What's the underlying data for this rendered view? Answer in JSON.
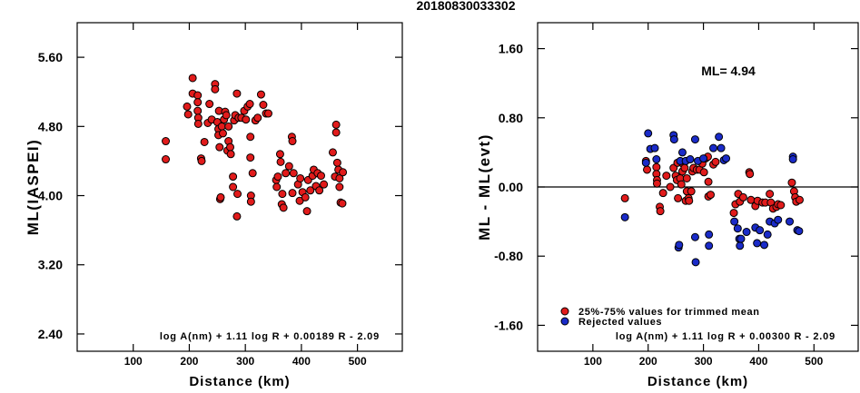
{
  "figure": {
    "title": "20180830033302"
  },
  "chart_data": [
    {
      "type": "scatter",
      "ylabel": "ML(IASPEI)",
      "xlabel": "Distance (km)",
      "xlim": [
        0,
        580
      ],
      "ylim": [
        2.2,
        6.0
      ],
      "xticks": [
        100,
        200,
        300,
        400,
        500
      ],
      "yticks": [
        2.4,
        3.2,
        4.0,
        4.8,
        5.6
      ],
      "ytick_labels": [
        "2.40",
        "3.20",
        "4.00",
        "4.80",
        "5.60"
      ],
      "formula": "log A(nm) + 1.11 log R + 0.00189 R - 2.09",
      "series": [
        {
          "color": "#e11b1b",
          "points": [
            [
              158,
              4.63
            ],
            [
              158,
              4.42
            ],
            [
              196,
              5.03
            ],
            [
              198,
              4.94
            ],
            [
              206,
              5.36
            ],
            [
              206,
              5.18
            ],
            [
              215,
              5.16
            ],
            [
              215,
              5.08
            ],
            [
              215,
              4.98
            ],
            [
              216,
              4.9
            ],
            [
              216,
              4.83
            ],
            [
              221,
              4.43
            ],
            [
              222,
              4.4
            ],
            [
              227,
              4.62
            ],
            [
              233,
              4.84
            ],
            [
              236,
              5.06
            ],
            [
              240,
              4.88
            ],
            [
              246,
              5.29
            ],
            [
              246,
              5.23
            ],
            [
              250,
              4.85
            ],
            [
              252,
              4.77
            ],
            [
              252,
              4.7
            ],
            [
              253,
              4.98
            ],
            [
              254,
              4.56
            ],
            [
              255,
              3.96
            ],
            [
              256,
              3.98
            ],
            [
              258,
              4.8
            ],
            [
              260,
              4.72
            ],
            [
              262,
              4.88
            ],
            [
              264,
              4.97
            ],
            [
              266,
              4.93
            ],
            [
              268,
              4.52
            ],
            [
              270,
              4.8
            ],
            [
              270,
              4.63
            ],
            [
              273,
              4.56
            ],
            [
              274,
              4.48
            ],
            [
              278,
              4.22
            ],
            [
              278,
              4.1
            ],
            [
              280,
              4.87
            ],
            [
              282,
              4.93
            ],
            [
              285,
              3.76
            ],
            [
              285,
              5.18
            ],
            [
              286,
              4.02
            ],
            [
              288,
              4.9
            ],
            [
              293,
              4.9
            ],
            [
              298,
              4.98
            ],
            [
              301,
              4.88
            ],
            [
              304,
              5.03
            ],
            [
              308,
              5.06
            ],
            [
              309,
              4.68
            ],
            [
              309,
              4.44
            ],
            [
              310,
              4.0
            ],
            [
              310,
              3.93
            ],
            [
              313,
              4.26
            ],
            [
              318,
              4.87
            ],
            [
              322,
              4.9
            ],
            [
              328,
              5.17
            ],
            [
              332,
              5.05
            ],
            [
              337,
              4.95
            ],
            [
              341,
              4.95
            ],
            [
              355,
              4.18
            ],
            [
              356,
              4.1
            ],
            [
              358,
              4.22
            ],
            [
              362,
              4.48
            ],
            [
              363,
              4.39
            ],
            [
              365,
              3.9
            ],
            [
              366,
              4.02
            ],
            [
              368,
              3.86
            ],
            [
              372,
              4.26
            ],
            [
              378,
              4.34
            ],
            [
              383,
              4.68
            ],
            [
              384,
              4.63
            ],
            [
              384,
              4.03
            ],
            [
              386,
              4.26
            ],
            [
              394,
              4.13
            ],
            [
              397,
              3.94
            ],
            [
              398,
              4.2
            ],
            [
              402,
              4.04
            ],
            [
              407,
              3.98
            ],
            [
              410,
              3.82
            ],
            [
              412,
              4.18
            ],
            [
              416,
              4.06
            ],
            [
              420,
              4.23
            ],
            [
              422,
              4.3
            ],
            [
              426,
              4.11
            ],
            [
              429,
              4.26
            ],
            [
              432,
              4.06
            ],
            [
              435,
              4.23
            ],
            [
              440,
              4.13
            ],
            [
              456,
              4.5
            ],
            [
              460,
              4.22
            ],
            [
              462,
              4.82
            ],
            [
              462,
              4.73
            ],
            [
              464,
              4.38
            ],
            [
              466,
              4.3
            ],
            [
              468,
              4.2
            ],
            [
              468,
              4.1
            ],
            [
              470,
              3.92
            ],
            [
              473,
              3.91
            ],
            [
              474,
              4.27
            ]
          ]
        }
      ]
    },
    {
      "type": "scatter",
      "ylabel": "ML - ML(evt)",
      "xlabel": "Distance (km)",
      "xlim": [
        0,
        580
      ],
      "ylim": [
        -1.9,
        1.9
      ],
      "xticks": [
        100,
        200,
        300,
        400,
        500
      ],
      "yticks": [
        -1.6,
        -0.8,
        0.0,
        0.8,
        1.6
      ],
      "ytick_labels": [
        "-1.60",
        "-0.80",
        "0.00",
        "0.80",
        "1.60"
      ],
      "zero_line": true,
      "annotation": "ML= 4.94",
      "formula": "log A(nm) + 1.11 log R + 0.00300 R - 2.09",
      "legend": {
        "position": "bottom-left",
        "entries": [
          {
            "label": "25%-75% values for trimmed mean",
            "color": "#e11b1b"
          },
          {
            "label": "Rejected values",
            "color": "#1a2bc8"
          }
        ]
      },
      "series": [
        {
          "name": "25%-75% values for trimmed mean",
          "color": "#e11b1b",
          "points": [
            [
              158,
              -0.13
            ],
            [
              196,
              0.3
            ],
            [
              198,
              0.2
            ],
            [
              215,
              0.23
            ],
            [
              215,
              0.15
            ],
            [
              216,
              0.08
            ],
            [
              216,
              0.04
            ],
            [
              221,
              -0.23
            ],
            [
              222,
              -0.28
            ],
            [
              227,
              -0.07
            ],
            [
              233,
              0.13
            ],
            [
              240,
              0.0
            ],
            [
              246,
              0.22
            ],
            [
              250,
              0.13
            ],
            [
              252,
              0.08
            ],
            [
              253,
              0.28
            ],
            [
              254,
              -0.13
            ],
            [
              258,
              0.1
            ],
            [
              260,
              0.03
            ],
            [
              262,
              0.18
            ],
            [
              264,
              0.26
            ],
            [
              266,
              0.22
            ],
            [
              268,
              -0.16
            ],
            [
              270,
              0.1
            ],
            [
              270,
              -0.05
            ],
            [
              273,
              -0.13
            ],
            [
              274,
              -0.16
            ],
            [
              278,
              -0.05
            ],
            [
              280,
              0.18
            ],
            [
              282,
              0.22
            ],
            [
              288,
              0.2
            ],
            [
              293,
              0.2
            ],
            [
              298,
              0.27
            ],
            [
              301,
              0.17
            ],
            [
              304,
              0.33
            ],
            [
              308,
              0.35
            ],
            [
              309,
              0.06
            ],
            [
              309,
              -0.11
            ],
            [
              313,
              -0.09
            ],
            [
              318,
              0.26
            ],
            [
              322,
              0.29
            ],
            [
              355,
              -0.3
            ],
            [
              358,
              -0.2
            ],
            [
              363,
              -0.08
            ],
            [
              366,
              -0.17
            ],
            [
              372,
              -0.12
            ],
            [
              383,
              0.17
            ],
            [
              384,
              0.15
            ],
            [
              386,
              -0.15
            ],
            [
              394,
              -0.22
            ],
            [
              398,
              -0.16
            ],
            [
              407,
              -0.18
            ],
            [
              412,
              -0.18
            ],
            [
              420,
              -0.08
            ],
            [
              422,
              -0.18
            ],
            [
              426,
              -0.25
            ],
            [
              432,
              -0.23
            ],
            [
              435,
              -0.2
            ],
            [
              440,
              -0.21
            ],
            [
              460,
              0.05
            ],
            [
              464,
              -0.05
            ],
            [
              466,
              -0.12
            ],
            [
              468,
              -0.17
            ],
            [
              474,
              -0.15
            ]
          ]
        },
        {
          "name": "Rejected values",
          "color": "#1a2bc8",
          "points": [
            [
              158,
              -0.35
            ],
            [
              196,
              0.28
            ],
            [
              200,
              0.62
            ],
            [
              204,
              0.44
            ],
            [
              212,
              0.45
            ],
            [
              215,
              0.32
            ],
            [
              246,
              0.6
            ],
            [
              247,
              0.55
            ],
            [
              255,
              -0.7
            ],
            [
              256,
              -0.67
            ],
            [
              258,
              0.3
            ],
            [
              262,
              0.4
            ],
            [
              268,
              0.3
            ],
            [
              276,
              0.32
            ],
            [
              285,
              0.55
            ],
            [
              285,
              -0.58
            ],
            [
              286,
              -0.87
            ],
            [
              290,
              0.3
            ],
            [
              300,
              0.33
            ],
            [
              310,
              -0.55
            ],
            [
              310,
              -0.68
            ],
            [
              318,
              0.45
            ],
            [
              328,
              0.58
            ],
            [
              332,
              0.45
            ],
            [
              337,
              0.31
            ],
            [
              341,
              0.33
            ],
            [
              356,
              -0.4
            ],
            [
              362,
              -0.48
            ],
            [
              365,
              -0.6
            ],
            [
              366,
              -0.68
            ],
            [
              368,
              -0.6
            ],
            [
              378,
              -0.52
            ],
            [
              394,
              -0.47
            ],
            [
              397,
              -0.65
            ],
            [
              402,
              -0.5
            ],
            [
              410,
              -0.67
            ],
            [
              416,
              -0.55
            ],
            [
              420,
              -0.4
            ],
            [
              429,
              -0.42
            ],
            [
              435,
              -0.38
            ],
            [
              456,
              -0.4
            ],
            [
              462,
              0.35
            ],
            [
              462,
              0.32
            ],
            [
              470,
              -0.5
            ],
            [
              473,
              -0.51
            ]
          ]
        }
      ]
    }
  ]
}
